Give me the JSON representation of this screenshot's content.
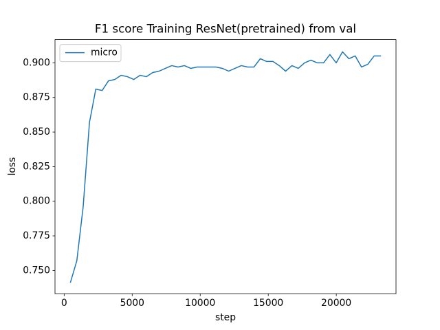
{
  "chart_data": {
    "type": "line",
    "title": "F1 score Training ResNet(pretrained) from val",
    "x_label": "step",
    "y_label": "loss",
    "x": [
      465,
      930,
      1395,
      1860,
      2325,
      2790,
      3255,
      3720,
      4185,
      4650,
      5115,
      5580,
      6045,
      6510,
      6975,
      7440,
      7905,
      8370,
      8835,
      9300,
      9765,
      10230,
      10695,
      11160,
      11625,
      12090,
      12555,
      13020,
      13485,
      13950,
      14415,
      14880,
      15345,
      15810,
      16275,
      16740,
      17205,
      17670,
      18135,
      18600,
      19065,
      19530,
      19995,
      20460,
      20925,
      21390,
      21855,
      22320,
      22785,
      23250
    ],
    "series": [
      {
        "name": "micro",
        "color": "#1f77b4",
        "values": [
          0.7415,
          0.757,
          0.796,
          0.857,
          0.881,
          0.88,
          0.887,
          0.888,
          0.891,
          0.89,
          0.888,
          0.891,
          0.89,
          0.893,
          0.894,
          0.896,
          0.898,
          0.897,
          0.898,
          0.896,
          0.897,
          0.897,
          0.897,
          0.897,
          0.896,
          0.894,
          0.896,
          0.898,
          0.897,
          0.897,
          0.903,
          0.901,
          0.901,
          0.898,
          0.894,
          0.898,
          0.896,
          0.9,
          0.902,
          0.9,
          0.9,
          0.906,
          0.9,
          0.908,
          0.903,
          0.905,
          0.897,
          0.899,
          0.905,
          0.905
        ]
      }
    ],
    "xlim": [
      -674,
      24389
    ],
    "ylim": [
      0.7332,
      0.9168
    ],
    "xticks": [
      0,
      5000,
      10000,
      15000,
      20000
    ],
    "yticks": [
      {
        "value": 0.75,
        "label": "0.750"
      },
      0.775,
      {
        "value": 0.8,
        "label": "0.800"
      },
      0.825,
      {
        "value": 0.85,
        "label": "0.850"
      },
      0.875,
      {
        "value": 0.9,
        "label": "0.900"
      }
    ],
    "grid": false,
    "legend_position": "upper left"
  }
}
